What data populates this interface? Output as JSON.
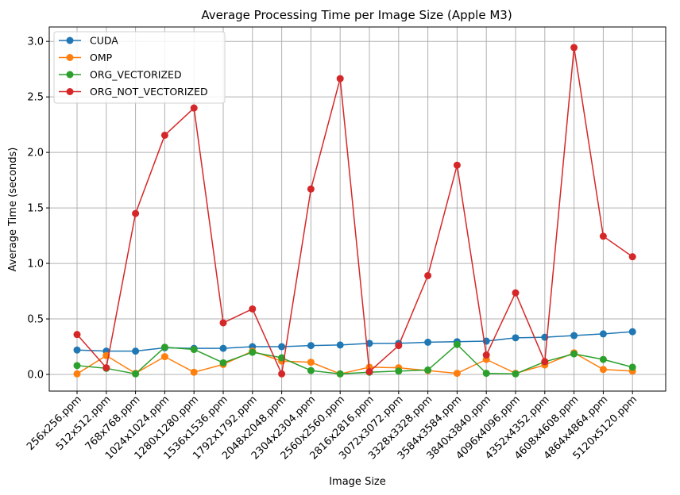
{
  "chart_data": {
    "type": "line",
    "title": "Average Processing Time per Image Size (Apple M3)",
    "xlabel": "Image Size",
    "ylabel": "Average Time (seconds)",
    "ylim": [
      -0.15,
      3.13
    ],
    "yticks": [
      0.0,
      0.5,
      1.0,
      1.5,
      2.0,
      2.5,
      3.0
    ],
    "ytick_labels": [
      "0.0",
      "0.5",
      "1.0",
      "1.5",
      "2.0",
      "2.5",
      "3.0"
    ],
    "grid": true,
    "legend_position": "top-left",
    "categories": [
      "256x256.ppm",
      "512x512.ppm",
      "768x768.ppm",
      "1024x1024.ppm",
      "1280x1280.ppm",
      "1536x1536.ppm",
      "1792x1792.ppm",
      "2048x2048.ppm",
      "2304x2304.ppm",
      "2560x2560.ppm",
      "2816x2816.ppm",
      "3072x3072.ppm",
      "3328x3328.ppm",
      "3584x3584.ppm",
      "3840x3840.ppm",
      "4096x4096.ppm",
      "4352x4352.ppm",
      "4608x4608.ppm",
      "4864x4864.ppm",
      "5120x5120.ppm"
    ],
    "series": [
      {
        "name": "CUDA",
        "color": "#1f77b4",
        "values": [
          0.22,
          0.21,
          0.21,
          0.24,
          0.235,
          0.235,
          0.25,
          0.25,
          0.26,
          0.265,
          0.28,
          0.28,
          0.29,
          0.295,
          0.3,
          0.33,
          0.335,
          0.35,
          0.365,
          0.385
        ]
      },
      {
        "name": "OMP",
        "color": "#ff7f0e",
        "values": [
          0.005,
          0.17,
          0.01,
          0.16,
          0.02,
          0.09,
          0.21,
          0.12,
          0.11,
          0.005,
          0.065,
          0.06,
          0.035,
          0.01,
          0.135,
          0.01,
          0.085,
          0.195,
          0.045,
          0.03
        ]
      },
      {
        "name": "ORG_VECTORIZED",
        "color": "#2ca02c",
        "values": [
          0.08,
          0.055,
          0.005,
          0.245,
          0.225,
          0.105,
          0.2,
          0.15,
          0.035,
          0.005,
          0.02,
          0.03,
          0.04,
          0.27,
          0.01,
          0.005,
          0.115,
          0.185,
          0.135,
          0.065
        ]
      },
      {
        "name": "ORG_NOT_VECTORIZED",
        "color": "#d62728",
        "values": [
          0.36,
          0.06,
          1.45,
          2.155,
          2.4,
          0.465,
          0.59,
          0.005,
          1.67,
          2.665,
          0.025,
          0.26,
          0.89,
          1.885,
          0.175,
          0.735,
          0.115,
          2.945,
          1.245,
          1.06
        ]
      }
    ]
  }
}
